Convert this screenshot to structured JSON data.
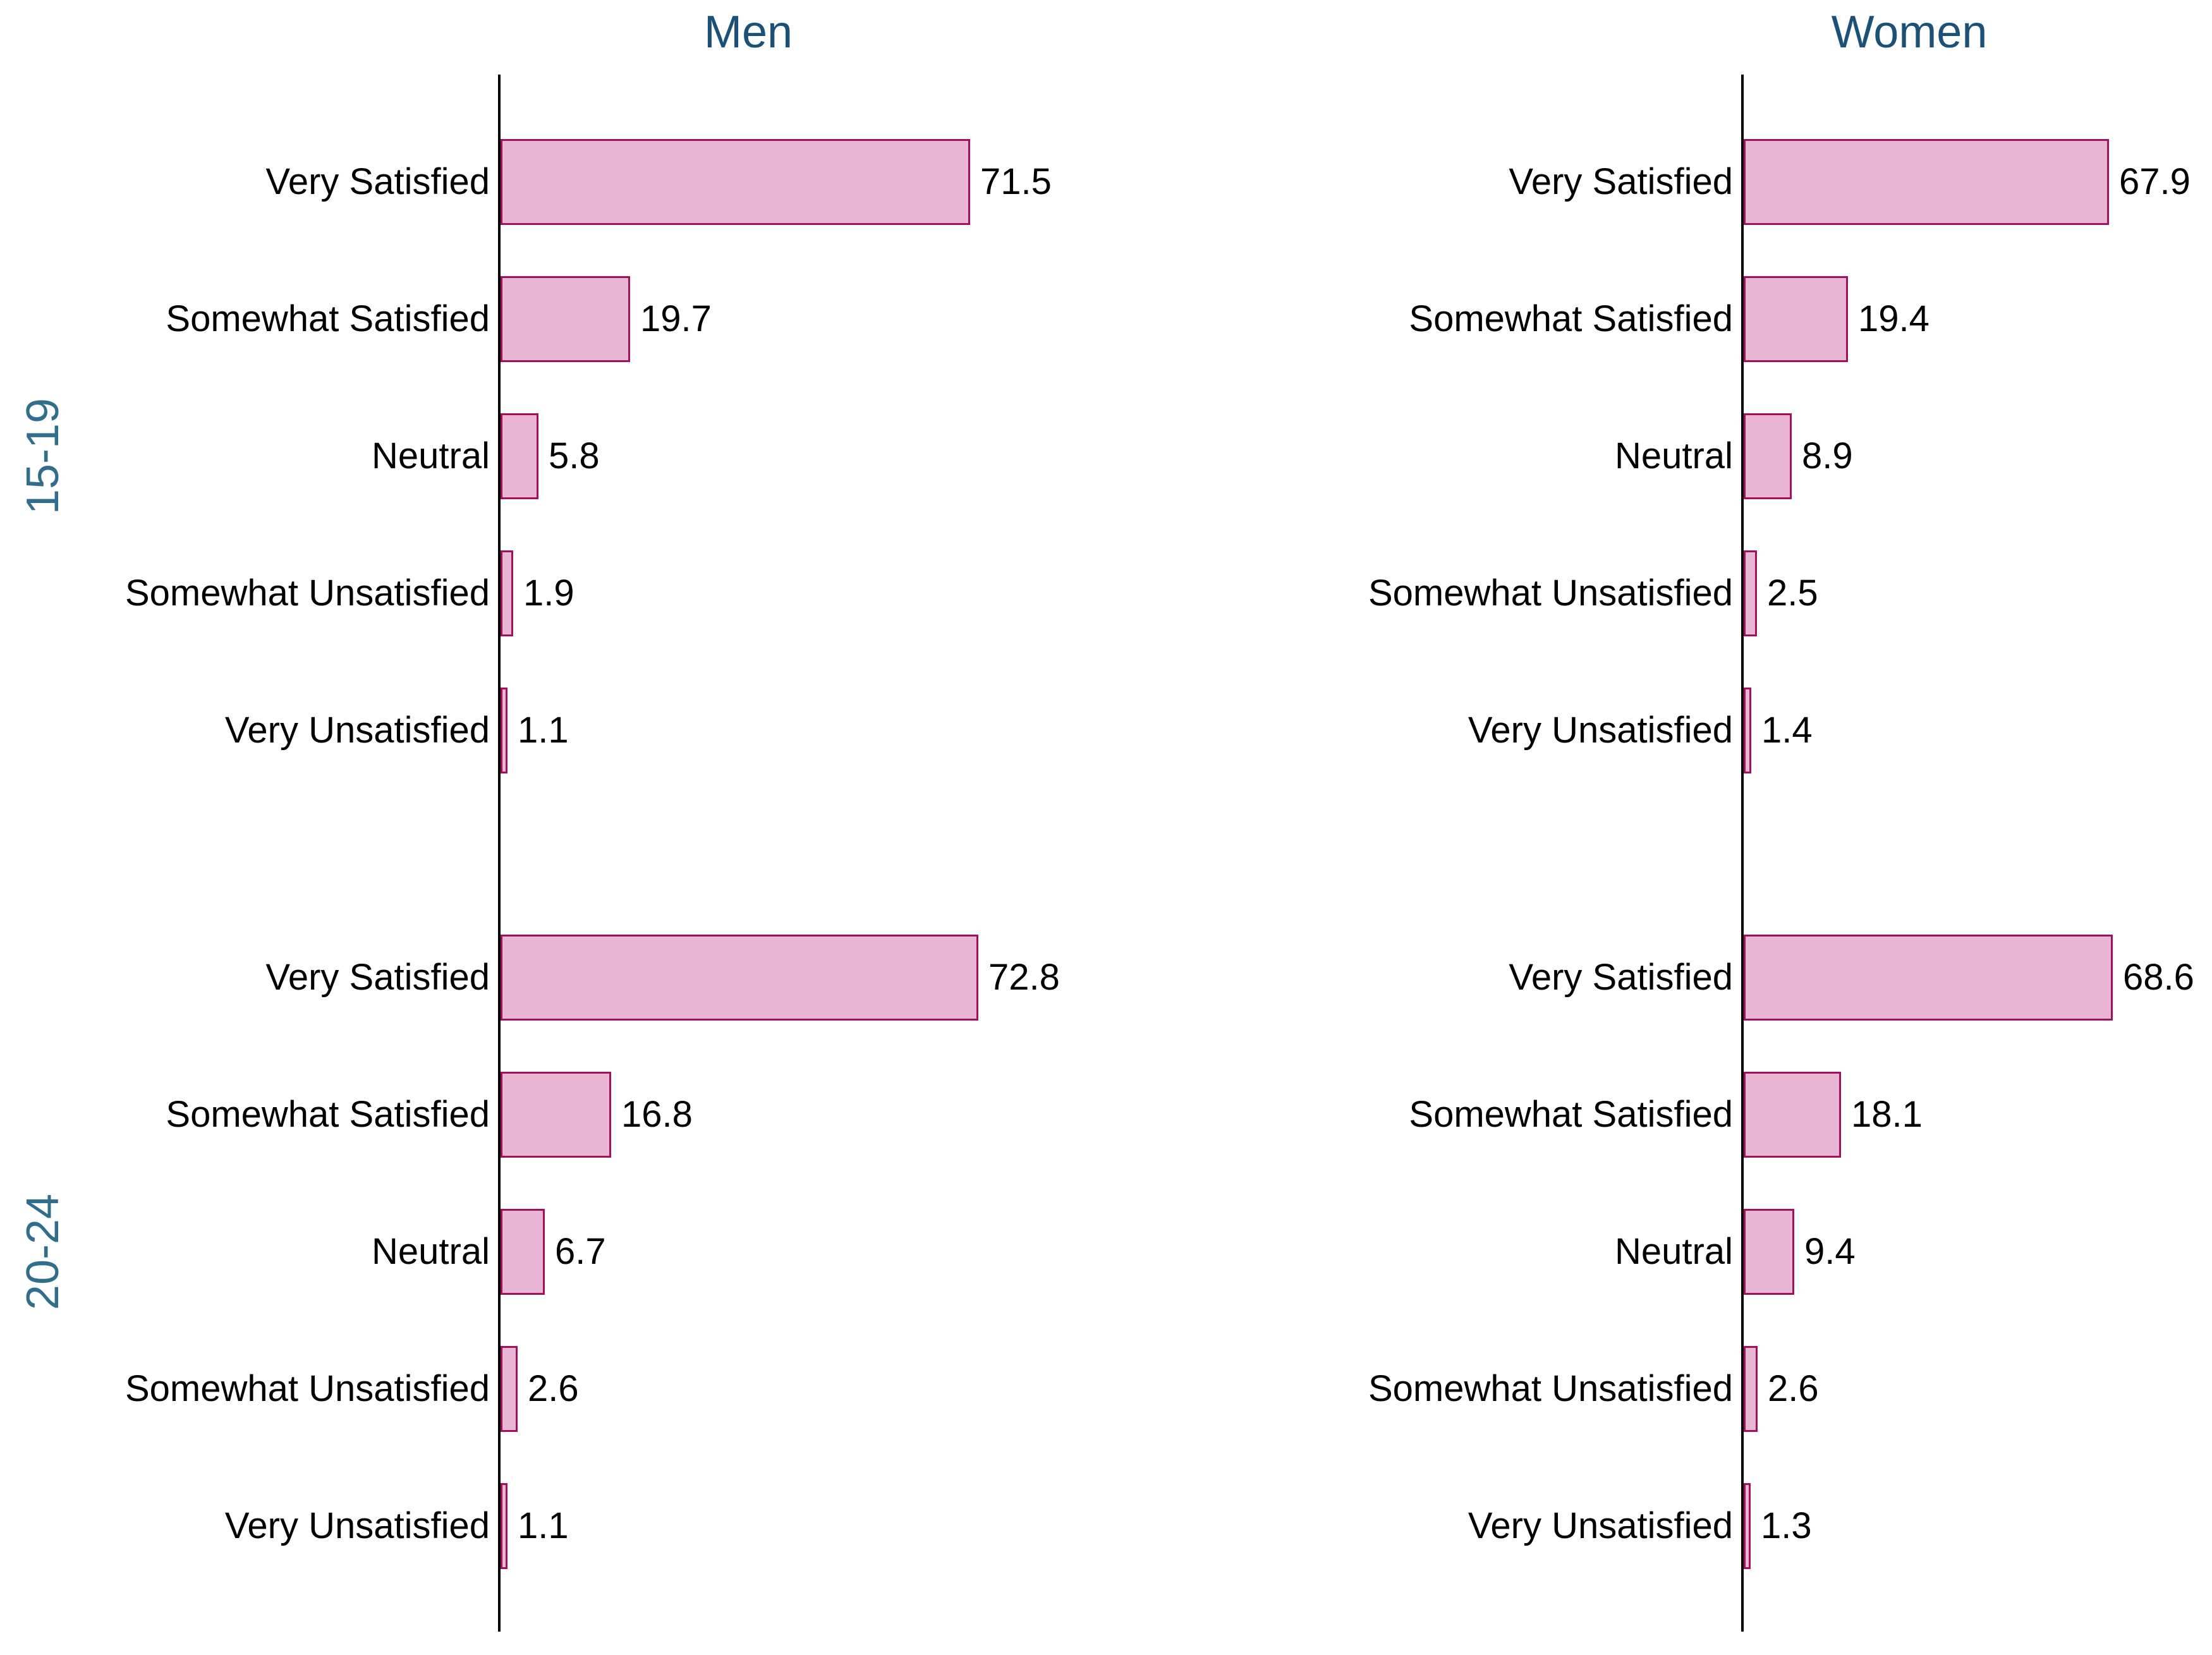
{
  "figure": {
    "background": "#ffffff",
    "title": "",
    "legend": "none"
  },
  "chart_data": {
    "type": "bar",
    "orientation": "horizontal",
    "facet_columns": [
      "Men",
      "Women"
    ],
    "facet_rows": [
      "15-19",
      "20-24"
    ],
    "categories": [
      "Very Satisfied",
      "Somewhat Satisfied",
      "Neutral",
      "Somewhat Unsatisfied",
      "Very Unsatisfied"
    ],
    "panels": [
      {
        "column": "Men",
        "row": "15-19",
        "values": [
          71.5,
          19.7,
          5.8,
          1.9,
          1.1
        ]
      },
      {
        "column": "Men",
        "row": "20-24",
        "values": [
          72.8,
          16.8,
          6.7,
          2.6,
          1.1
        ]
      },
      {
        "column": "Women",
        "row": "15-19",
        "values": [
          67.9,
          19.4,
          8.9,
          2.5,
          1.4
        ]
      },
      {
        "column": "Women",
        "row": "20-24",
        "values": [
          68.6,
          18.1,
          9.4,
          2.6,
          1.3
        ]
      }
    ],
    "value_labels_shown": true,
    "value_label_format": "one-decimal",
    "x_axis_ticks_shown": false,
    "grid": "off",
    "colors": {
      "bar_fill": "#E8B6D2",
      "bar_border": "#A0105C",
      "facet_header": "#1B5078",
      "row_group_label": "#316E8C",
      "axis_line": "#000000",
      "text": "#000000"
    }
  }
}
